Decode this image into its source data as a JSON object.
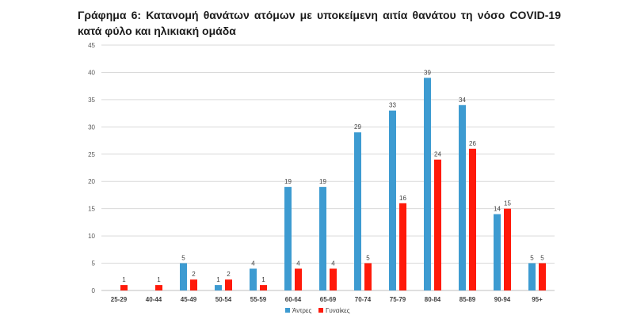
{
  "title": "Γράφημα 6: Κατανομή θανάτων ατόμων με υποκείμενη αιτία θανάτου τη νόσο COVID-19 κατά φύλο και ηλικιακή ομάδα",
  "chart_data": {
    "type": "bar",
    "title": "Γράφημα 6: Κατανομή θανάτων ατόμων με υποκείμενη αιτία θανάτου τη νόσο COVID-19 κατά φύλο και ηλικιακή ομάδα",
    "xlabel": "",
    "ylabel": "",
    "ylim": [
      0,
      45
    ],
    "yticks": [
      0,
      5,
      10,
      15,
      20,
      25,
      30,
      35,
      40,
      45
    ],
    "grid": true,
    "legend_position": "bottom",
    "categories": [
      "25-29",
      "40-44",
      "45-49",
      "50-54",
      "55-59",
      "60-64",
      "65-69",
      "70-74",
      "75-79",
      "80-84",
      "85-89",
      "90-94",
      "95+"
    ],
    "series": [
      {
        "name": "Άντρες",
        "color": "#3d9bd1",
        "values": [
          0,
          0,
          5,
          1,
          4,
          19,
          19,
          29,
          33,
          39,
          34,
          14,
          5
        ]
      },
      {
        "name": "Γυναίκες",
        "color": "#ff1a0a",
        "values": [
          1,
          1,
          2,
          2,
          1,
          4,
          4,
          5,
          16,
          24,
          26,
          15,
          5
        ]
      }
    ]
  }
}
